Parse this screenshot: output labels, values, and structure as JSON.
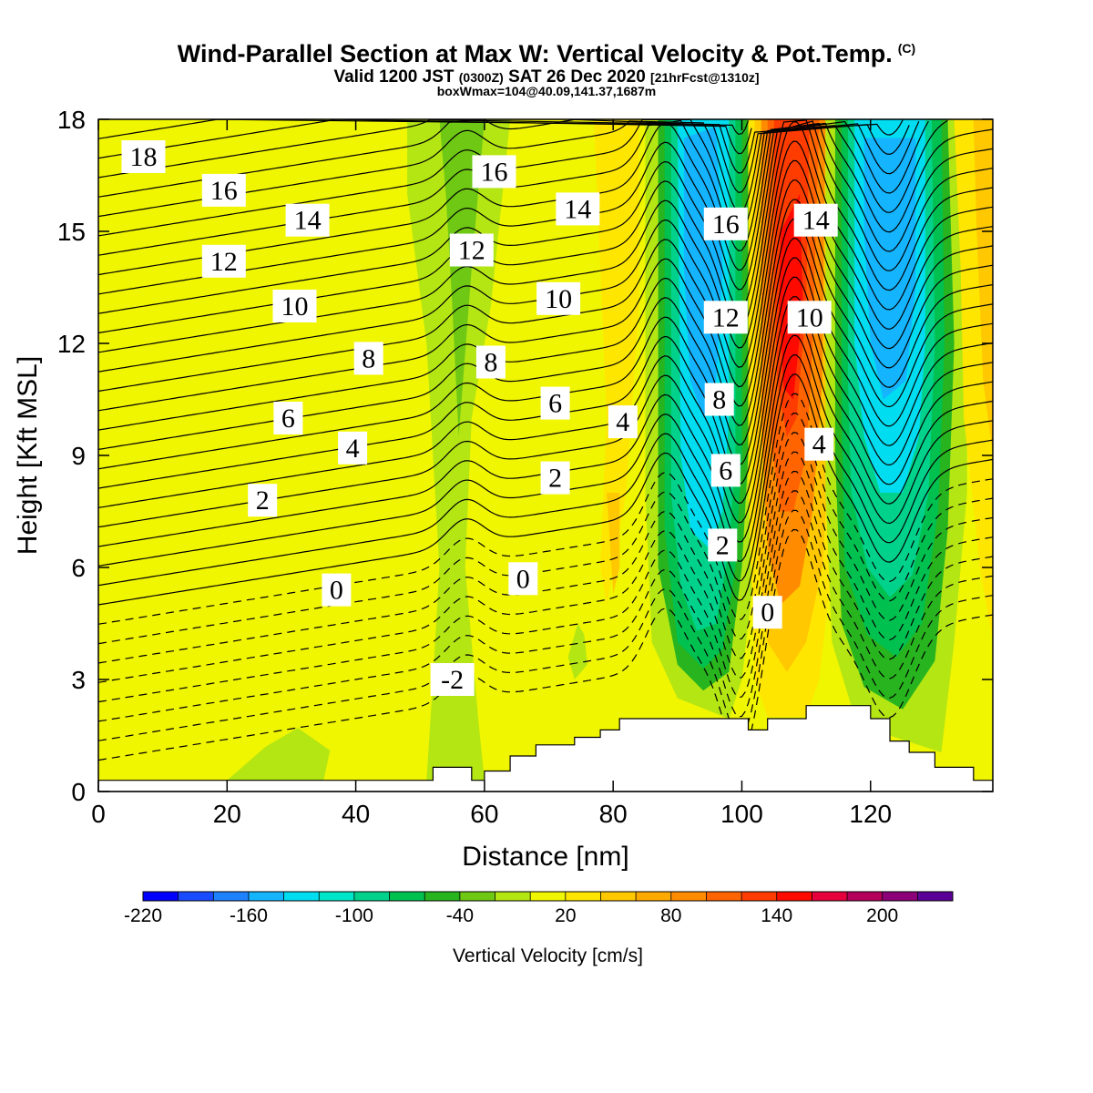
{
  "header": {
    "title": "Wind-Parallel Section at Max W: Vertical Velocity & Pot.Temp.",
    "title_mark": "(C)",
    "valid_prefix": "Valid 1200 JST",
    "valid_zulu": "(0300Z)",
    "valid_date": "SAT 26 Dec 2020",
    "forecast": "[21hrFcst@1310z]",
    "box_info": "boxWmax=104@40.09,141.37,1687m"
  },
  "chart_data": {
    "type": "contour",
    "xlabel": "Distance [nm]",
    "ylabel": "Height [Kft MSL]",
    "xlim": [
      0,
      139
    ],
    "ylim": [
      0,
      18
    ],
    "xticks": [
      "0",
      "20",
      "40",
      "60",
      "80",
      "100",
      "120"
    ],
    "yticks": [
      "0",
      "3",
      "6",
      "9",
      "12",
      "15",
      "18"
    ],
    "colorbar": {
      "label": "Vertical Velocity [cm/s]",
      "tick_labels": [
        "-220",
        "-160",
        "-100",
        "-40",
        "20",
        "80",
        "140",
        "200"
      ],
      "colors": [
        "#0000ff",
        "#1a4bff",
        "#1e82ff",
        "#14b4ff",
        "#00dcf0",
        "#00e6c8",
        "#00d28c",
        "#00c050",
        "#28b41e",
        "#6ec814",
        "#b4e614",
        "#f0f500",
        "#ffe600",
        "#ffc800",
        "#ffaa00",
        "#ff8c00",
        "#ff6400",
        "#ff3c00",
        "#ff0a00",
        "#e6003c",
        "#b4005a",
        "#8c0078",
        "#5a0096"
      ]
    },
    "theta_labels": [
      {
        "text": "18",
        "x": 7,
        "y": 17.0
      },
      {
        "text": "16",
        "x": 19.5,
        "y": 16.1
      },
      {
        "text": "14",
        "x": 32.5,
        "y": 15.3
      },
      {
        "text": "12",
        "x": 19.5,
        "y": 14.2
      },
      {
        "text": "10",
        "x": 30.5,
        "y": 13.0
      },
      {
        "text": "8",
        "x": 42,
        "y": 11.6
      },
      {
        "text": "6",
        "x": 29.5,
        "y": 10.0
      },
      {
        "text": "4",
        "x": 39.5,
        "y": 9.2
      },
      {
        "text": "2",
        "x": 25.5,
        "y": 7.8
      },
      {
        "text": "0",
        "x": 37,
        "y": 5.4
      },
      {
        "text": "16",
        "x": 61.5,
        "y": 16.6
      },
      {
        "text": "14",
        "x": 74.5,
        "y": 15.6
      },
      {
        "text": "12",
        "x": 58,
        "y": 14.5
      },
      {
        "text": "10",
        "x": 71.5,
        "y": 13.2
      },
      {
        "text": "8",
        "x": 61,
        "y": 11.5
      },
      {
        "text": "6",
        "x": 71,
        "y": 10.4
      },
      {
        "text": "4",
        "x": 81.5,
        "y": 9.9
      },
      {
        "text": "2",
        "x": 71,
        "y": 8.4
      },
      {
        "text": "0",
        "x": 66,
        "y": 5.7
      },
      {
        "text": "-2",
        "x": 55,
        "y": 3.0
      },
      {
        "text": "16",
        "x": 97.5,
        "y": 15.2
      },
      {
        "text": "12",
        "x": 97.5,
        "y": 12.7
      },
      {
        "text": "8",
        "x": 96.5,
        "y": 10.5
      },
      {
        "text": "6",
        "x": 97.5,
        "y": 8.6
      },
      {
        "text": "2",
        "x": 97,
        "y": 6.6
      },
      {
        "text": "0",
        "x": 104,
        "y": 4.8
      },
      {
        "text": "14",
        "x": 111.5,
        "y": 15.3
      },
      {
        "text": "10",
        "x": 110.5,
        "y": 12.7
      },
      {
        "text": "4",
        "x": 112,
        "y": 9.3
      }
    ],
    "terrain": [
      [
        0,
        0.3
      ],
      [
        52,
        0.3
      ],
      [
        52,
        0.65
      ],
      [
        58,
        0.65
      ],
      [
        58,
        0.3
      ],
      [
        60,
        0.3
      ],
      [
        60,
        0.55
      ],
      [
        64,
        0.55
      ],
      [
        64,
        0.95
      ],
      [
        68,
        0.95
      ],
      [
        68,
        1.25
      ],
      [
        74,
        1.25
      ],
      [
        74,
        1.45
      ],
      [
        78,
        1.45
      ],
      [
        78,
        1.65
      ],
      [
        81,
        1.65
      ],
      [
        81,
        1.95
      ],
      [
        101,
        1.95
      ],
      [
        101,
        1.65
      ],
      [
        104,
        1.65
      ],
      [
        104,
        1.95
      ],
      [
        110,
        1.95
      ],
      [
        110,
        2.3
      ],
      [
        120,
        2.3
      ],
      [
        120,
        1.95
      ],
      [
        123,
        1.95
      ],
      [
        123,
        1.35
      ],
      [
        126,
        1.35
      ],
      [
        126,
        1.05
      ],
      [
        130,
        1.05
      ],
      [
        130,
        0.65
      ],
      [
        136,
        0.65
      ],
      [
        136,
        0.3
      ],
      [
        139,
        0.3
      ]
    ]
  }
}
